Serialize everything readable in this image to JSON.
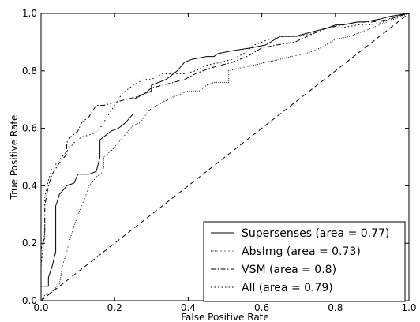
{
  "chart_data": {
    "type": "line",
    "title": "",
    "xlabel": "False Positive Rate",
    "ylabel": "True Positive Rate",
    "xlim": [
      0,
      1
    ],
    "ylim": [
      0,
      1
    ],
    "xticks": [
      "0.0",
      "0.2",
      "0.4",
      "0.6",
      "0.8",
      "1.0"
    ],
    "yticks": [
      "0.0",
      "0.2",
      "0.4",
      "0.6",
      "0.8",
      "1.0"
    ],
    "grid": false,
    "legend_position": "lower-right",
    "series": [
      {
        "name": "Supersenses (area = 0.77)",
        "style": "solid",
        "color": "#000000",
        "points": [
          [
            0,
            0
          ],
          [
            0,
            0.05
          ],
          [
            0.02,
            0.05
          ],
          [
            0.02,
            0.08
          ],
          [
            0.03,
            0.12
          ],
          [
            0.04,
            0.17
          ],
          [
            0.04,
            0.33
          ],
          [
            0.05,
            0.37
          ],
          [
            0.07,
            0.4
          ],
          [
            0.09,
            0.41
          ],
          [
            0.1,
            0.44
          ],
          [
            0.13,
            0.44
          ],
          [
            0.15,
            0.45
          ],
          [
            0.16,
            0.5
          ],
          [
            0.16,
            0.56
          ],
          [
            0.19,
            0.59
          ],
          [
            0.21,
            0.6
          ],
          [
            0.23,
            0.62
          ],
          [
            0.25,
            0.65
          ],
          [
            0.25,
            0.7
          ],
          [
            0.28,
            0.72
          ],
          [
            0.3,
            0.73
          ],
          [
            0.3,
            0.75
          ],
          [
            0.34,
            0.77
          ],
          [
            0.37,
            0.8
          ],
          [
            0.39,
            0.83
          ],
          [
            0.41,
            0.84
          ],
          [
            0.45,
            0.85
          ],
          [
            0.47,
            0.85
          ],
          [
            0.48,
            0.86
          ],
          [
            0.52,
            0.87
          ],
          [
            0.57,
            0.88
          ],
          [
            0.61,
            0.89
          ],
          [
            0.65,
            0.92
          ],
          [
            0.69,
            0.92
          ],
          [
            0.72,
            0.93
          ],
          [
            0.78,
            0.95
          ],
          [
            0.8,
            0.96
          ],
          [
            0.82,
            0.96
          ],
          [
            0.86,
            0.97
          ],
          [
            0.88,
            0.97
          ],
          [
            0.92,
            0.98
          ],
          [
            0.95,
            0.99
          ],
          [
            1.0,
            1.0
          ]
        ]
      },
      {
        "name": "AbsImg (area = 0.73)",
        "style": "dotted-fine",
        "color": "#000000",
        "points": [
          [
            0,
            0
          ],
          [
            0.01,
            0.02
          ],
          [
            0.03,
            0.03
          ],
          [
            0.05,
            0.06
          ],
          [
            0.06,
            0.13
          ],
          [
            0.07,
            0.17
          ],
          [
            0.08,
            0.22
          ],
          [
            0.09,
            0.26
          ],
          [
            0.1,
            0.3
          ],
          [
            0.12,
            0.36
          ],
          [
            0.13,
            0.4
          ],
          [
            0.15,
            0.43
          ],
          [
            0.17,
            0.45
          ],
          [
            0.17,
            0.5
          ],
          [
            0.19,
            0.52
          ],
          [
            0.21,
            0.55
          ],
          [
            0.23,
            0.58
          ],
          [
            0.25,
            0.61
          ],
          [
            0.27,
            0.62
          ],
          [
            0.28,
            0.64
          ],
          [
            0.3,
            0.67
          ],
          [
            0.33,
            0.69
          ],
          [
            0.36,
            0.71
          ],
          [
            0.4,
            0.73
          ],
          [
            0.43,
            0.73
          ],
          [
            0.45,
            0.75
          ],
          [
            0.47,
            0.76
          ],
          [
            0.49,
            0.76
          ],
          [
            0.51,
            0.76
          ],
          [
            0.51,
            0.8
          ],
          [
            0.54,
            0.81
          ],
          [
            0.58,
            0.82
          ],
          [
            0.61,
            0.83
          ],
          [
            0.65,
            0.84
          ],
          [
            0.68,
            0.85
          ],
          [
            0.72,
            0.86
          ],
          [
            0.76,
            0.88
          ],
          [
            0.8,
            0.91
          ],
          [
            0.84,
            0.92
          ],
          [
            0.88,
            0.94
          ],
          [
            0.92,
            0.96
          ],
          [
            0.96,
            0.98
          ],
          [
            1.0,
            1.0
          ]
        ]
      },
      {
        "name": "VSM (area = 0.8)",
        "style": "dashdot",
        "color": "#000000",
        "points": [
          [
            0,
            0
          ],
          [
            0,
            0.18
          ],
          [
            0.01,
            0.22
          ],
          [
            0.01,
            0.33
          ],
          [
            0.02,
            0.4
          ],
          [
            0.03,
            0.44
          ],
          [
            0.05,
            0.48
          ],
          [
            0.07,
            0.51
          ],
          [
            0.07,
            0.55
          ],
          [
            0.08,
            0.57
          ],
          [
            0.1,
            0.59
          ],
          [
            0.11,
            0.62
          ],
          [
            0.13,
            0.64
          ],
          [
            0.14,
            0.66
          ],
          [
            0.15,
            0.68
          ],
          [
            0.17,
            0.68
          ],
          [
            0.2,
            0.69
          ],
          [
            0.23,
            0.7
          ],
          [
            0.26,
            0.71
          ],
          [
            0.28,
            0.72
          ],
          [
            0.3,
            0.74
          ],
          [
            0.33,
            0.75
          ],
          [
            0.36,
            0.76
          ],
          [
            0.39,
            0.77
          ],
          [
            0.42,
            0.79
          ],
          [
            0.46,
            0.81
          ],
          [
            0.49,
            0.82
          ],
          [
            0.52,
            0.83
          ],
          [
            0.56,
            0.85
          ],
          [
            0.6,
            0.88
          ],
          [
            0.64,
            0.89
          ],
          [
            0.69,
            0.9
          ],
          [
            0.74,
            0.93
          ],
          [
            0.78,
            0.95
          ],
          [
            0.82,
            0.96
          ],
          [
            0.86,
            0.97
          ],
          [
            0.9,
            0.97
          ],
          [
            0.95,
            0.98
          ],
          [
            0.97,
            0.99
          ],
          [
            1.0,
            1.0
          ]
        ]
      },
      {
        "name": "All (area = 0.79)",
        "style": "dotted",
        "color": "#000000",
        "points": [
          [
            0,
            0
          ],
          [
            0,
            0.12
          ],
          [
            0.01,
            0.24
          ],
          [
            0.01,
            0.36
          ],
          [
            0.02,
            0.42
          ],
          [
            0.03,
            0.46
          ],
          [
            0.05,
            0.49
          ],
          [
            0.07,
            0.52
          ],
          [
            0.09,
            0.55
          ],
          [
            0.11,
            0.57
          ],
          [
            0.14,
            0.58
          ],
          [
            0.16,
            0.6
          ],
          [
            0.18,
            0.64
          ],
          [
            0.2,
            0.68
          ],
          [
            0.22,
            0.72
          ],
          [
            0.25,
            0.75
          ],
          [
            0.28,
            0.77
          ],
          [
            0.3,
            0.77
          ],
          [
            0.33,
            0.79
          ],
          [
            0.36,
            0.79
          ],
          [
            0.39,
            0.79
          ],
          [
            0.42,
            0.8
          ],
          [
            0.45,
            0.82
          ],
          [
            0.49,
            0.83
          ],
          [
            0.52,
            0.84
          ],
          [
            0.55,
            0.86
          ],
          [
            0.58,
            0.89
          ],
          [
            0.62,
            0.91
          ],
          [
            0.66,
            0.92
          ],
          [
            0.7,
            0.92
          ],
          [
            0.74,
            0.93
          ],
          [
            0.78,
            0.95
          ],
          [
            0.82,
            0.95
          ],
          [
            0.86,
            0.96
          ],
          [
            0.9,
            0.96
          ],
          [
            0.93,
            0.97
          ],
          [
            0.96,
            0.99
          ],
          [
            1.0,
            1.0
          ]
        ]
      },
      {
        "name": "",
        "style": "dashed",
        "color": "#000000",
        "points": [
          [
            0,
            0
          ],
          [
            1,
            1
          ]
        ]
      }
    ]
  }
}
